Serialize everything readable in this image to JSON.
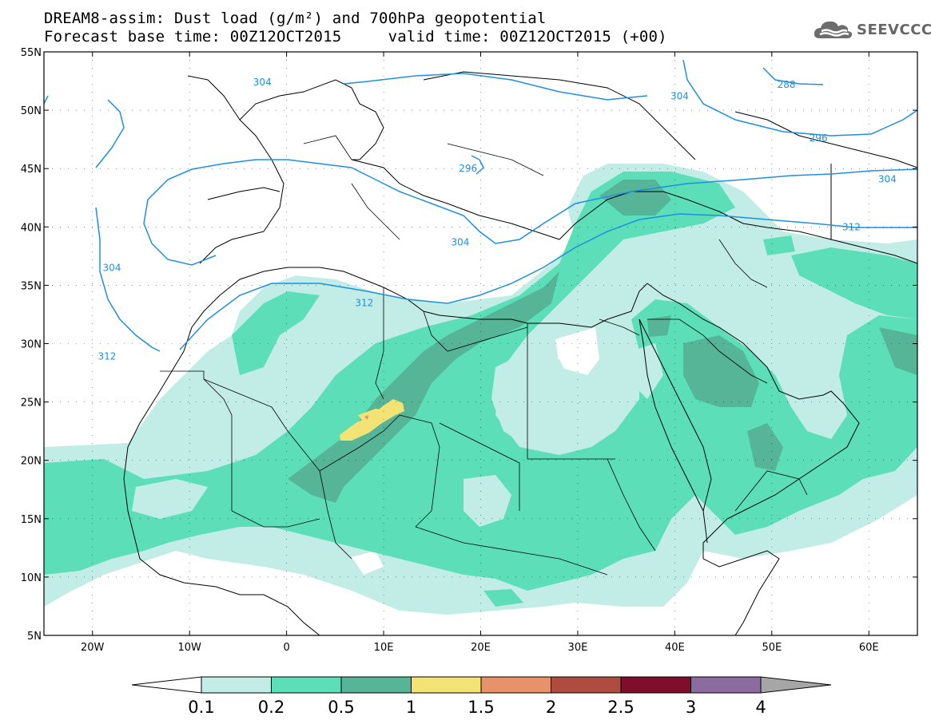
{
  "header": {
    "title_line1": "DREAM8-assim: Dust load (g/m²) and 700hPa geopotential",
    "title_line2": "Forecast base time: 00Z12OCT2015     valid time: 00Z12OCT2015 (+00)",
    "logo_text": "SEEVCCC"
  },
  "map": {
    "lat_labels": [
      "55N",
      "50N",
      "45N",
      "40N",
      "35N",
      "30N",
      "25N",
      "20N",
      "15N",
      "10N",
      "5N"
    ],
    "lon_labels": [
      "20W",
      "10W",
      "0",
      "10E",
      "20E",
      "30E",
      "40E",
      "50E",
      "60E"
    ],
    "lon_range": [
      -25,
      65
    ],
    "lat_range": [
      5,
      55
    ],
    "contour_color": "#1e8fe0",
    "contour_labels": [
      {
        "text": "304",
        "lon": -2.5,
        "lat": 52.4
      },
      {
        "text": "304",
        "lon": 40.5,
        "lat": 51.2
      },
      {
        "text": "288",
        "lon": 51.5,
        "lat": 52.2
      },
      {
        "text": "296",
        "lon": 54.8,
        "lat": 47.6
      },
      {
        "text": "296",
        "lon": 18.7,
        "lat": 45.0
      },
      {
        "text": "304",
        "lon": 61.9,
        "lat": 44.1
      },
      {
        "text": "312",
        "lon": 58.2,
        "lat": 40.0
      },
      {
        "text": "304",
        "lon": -18.0,
        "lat": 36.5
      },
      {
        "text": "304",
        "lon": 17.9,
        "lat": 38.7
      },
      {
        "text": "312",
        "lon": 8.0,
        "lat": 33.5
      },
      {
        "text": "312",
        "lon": -18.5,
        "lat": 28.9
      }
    ]
  },
  "colorbar": {
    "labels": [
      "0.1",
      "0.2",
      "0.5",
      "1",
      "1.5",
      "2",
      "2.5",
      "3",
      "4"
    ],
    "colors": [
      "#c2ede6",
      "#5cdfb9",
      "#55b596",
      "#f2e374",
      "#e8926a",
      "#b04b3f",
      "#7e0e2b",
      "#8b6ba0"
    ],
    "under_color": "#ffffff",
    "over_color": "#a6a6a6"
  },
  "dust_colors": {
    "level1": "#c2ede6",
    "level2": "#5cdfb9",
    "level3": "#55b596",
    "level4": "#f2e374",
    "level5": "#e8926a"
  }
}
